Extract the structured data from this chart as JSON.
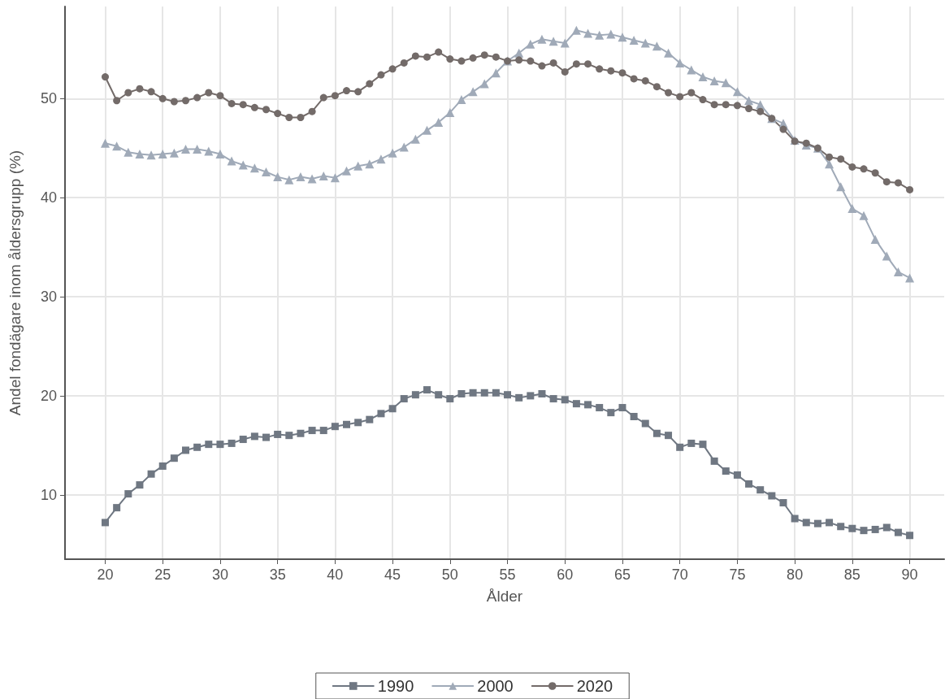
{
  "chart_data": {
    "type": "line",
    "xlabel": "Ålder",
    "ylabel": "Andel fondägare inom åldersgrupp (%)",
    "x": [
      20,
      21,
      22,
      23,
      24,
      25,
      26,
      27,
      28,
      29,
      30,
      31,
      32,
      33,
      34,
      35,
      36,
      37,
      38,
      39,
      40,
      41,
      42,
      43,
      44,
      45,
      46,
      47,
      48,
      49,
      50,
      51,
      52,
      53,
      54,
      55,
      56,
      57,
      58,
      59,
      60,
      61,
      62,
      63,
      64,
      65,
      66,
      67,
      68,
      69,
      70,
      71,
      72,
      73,
      74,
      75,
      76,
      77,
      78,
      79,
      80,
      81,
      82,
      83,
      84,
      85,
      86,
      87,
      88,
      89,
      90
    ],
    "series": [
      {
        "name": "1990",
        "color": "#6f7782",
        "marker": "square",
        "values": [
          7.2,
          8.7,
          10.1,
          11.0,
          12.1,
          12.9,
          13.7,
          14.5,
          14.8,
          15.1,
          15.1,
          15.2,
          15.6,
          15.9,
          15.8,
          16.1,
          16.0,
          16.2,
          16.5,
          16.5,
          16.9,
          17.1,
          17.3,
          17.6,
          18.2,
          18.7,
          19.7,
          20.1,
          20.6,
          20.1,
          19.7,
          20.2,
          20.3,
          20.3,
          20.3,
          20.1,
          19.8,
          20.0,
          20.2,
          19.7,
          19.6,
          19.2,
          19.1,
          18.8,
          18.3,
          18.8,
          17.9,
          17.2,
          16.2,
          16.0,
          14.8,
          15.2,
          15.1,
          13.4,
          12.4,
          12.0,
          11.1,
          10.5,
          9.9,
          9.2,
          7.6,
          7.2,
          7.1,
          7.2,
          6.8,
          6.6,
          6.4,
          6.5,
          6.7,
          6.2,
          5.9
        ]
      },
      {
        "name": "2000",
        "color": "#a0aab8",
        "marker": "triangle",
        "values": [
          45.5,
          45.2,
          44.6,
          44.4,
          44.3,
          44.4,
          44.5,
          44.9,
          44.9,
          44.7,
          44.4,
          43.7,
          43.3,
          43.0,
          42.6,
          42.1,
          41.8,
          42.1,
          41.9,
          42.2,
          42.0,
          42.7,
          43.2,
          43.4,
          43.9,
          44.5,
          45.1,
          45.9,
          46.8,
          47.6,
          48.6,
          49.9,
          50.7,
          51.5,
          52.6,
          53.8,
          54.6,
          55.5,
          56.0,
          55.8,
          55.6,
          56.9,
          56.6,
          56.4,
          56.5,
          56.2,
          55.9,
          55.6,
          55.3,
          54.6,
          53.6,
          52.9,
          52.2,
          51.8,
          51.6,
          50.7,
          49.8,
          49.4,
          48.0,
          47.5,
          45.8,
          45.3,
          45.0,
          43.4,
          41.1,
          38.9,
          38.2,
          35.8,
          34.1,
          32.5,
          31.9
        ]
      },
      {
        "name": "2020",
        "color": "#736b69",
        "marker": "circle",
        "values": [
          52.2,
          49.8,
          50.6,
          51.0,
          50.7,
          50.0,
          49.7,
          49.8,
          50.1,
          50.6,
          50.3,
          49.5,
          49.4,
          49.1,
          48.9,
          48.5,
          48.1,
          48.1,
          48.7,
          50.1,
          50.3,
          50.8,
          50.7,
          51.5,
          52.4,
          53.0,
          53.6,
          54.3,
          54.2,
          54.7,
          54.0,
          53.8,
          54.1,
          54.4,
          54.2,
          53.8,
          53.9,
          53.8,
          53.3,
          53.6,
          52.7,
          53.5,
          53.5,
          53.0,
          52.8,
          52.6,
          52.0,
          51.8,
          51.2,
          50.6,
          50.2,
          50.6,
          49.9,
          49.4,
          49.4,
          49.3,
          49.0,
          48.7,
          48.0,
          46.9,
          45.7,
          45.5,
          45.0,
          44.1,
          43.9,
          43.1,
          42.9,
          42.5,
          41.6,
          41.5,
          40.8
        ]
      }
    ],
    "xlim": [
      16.5,
      93
    ],
    "xticks": [
      20,
      25,
      30,
      35,
      40,
      45,
      50,
      55,
      60,
      65,
      70,
      75,
      80,
      85,
      90
    ],
    "ylim": [
      3.5,
      59.3
    ],
    "yticks": [
      10,
      20,
      30,
      40,
      50
    ],
    "grid": true,
    "legend": "bottom",
    "line_style": "solid"
  }
}
